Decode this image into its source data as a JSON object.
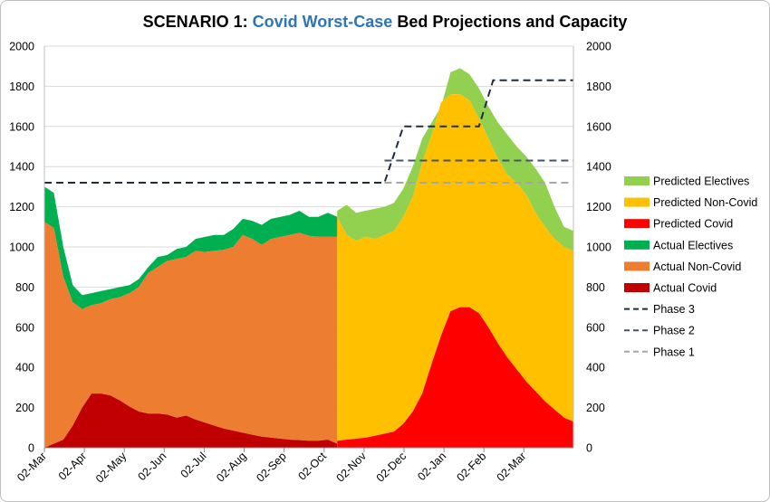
{
  "chart_data": {
    "type": "area",
    "title_prefix": "SCENARIO 1: ",
    "title_highlight": "Covid Worst-Case",
    "title_suffix": " Bed Projections and Capacity",
    "colors": {
      "title_highlight": "#2E75B6",
      "predicted_electives": "#92D050",
      "predicted_non_covid": "#FFC000",
      "predicted_covid": "#FF0000",
      "actual_electives": "#00B050",
      "actual_non_covid": "#ED7D31",
      "actual_covid": "#C00000",
      "phase3": "#1F2D3D",
      "phase2": "#44546A",
      "phase1": "#A6A6A6",
      "grid": "#D9D9D9"
    },
    "x_tick_labels": [
      "02-Mar",
      "02-Apr",
      "02-May",
      "02-Jun",
      "02-Jul",
      "02-Aug",
      "02-Sep",
      "02-Oct",
      "02-Nov",
      "02-Dec",
      "02-Jan",
      "02-Feb",
      "02-Mar"
    ],
    "x_range_weeks": [
      0,
      56
    ],
    "ylim": [
      0,
      2000
    ],
    "y_ticks": [
      0,
      200,
      400,
      600,
      800,
      1000,
      1200,
      1400,
      1600,
      1800,
      2000
    ],
    "grid": true,
    "legend_position": "right",
    "legend": [
      {
        "key": "predicted_electives",
        "label": "Predicted Electives",
        "style": "area"
      },
      {
        "key": "predicted_non_covid",
        "label": "Predicted Non-Covid",
        "style": "area"
      },
      {
        "key": "predicted_covid",
        "label": "Predicted Covid",
        "style": "area"
      },
      {
        "key": "actual_electives",
        "label": "Actual Electives",
        "style": "area"
      },
      {
        "key": "actual_non_covid",
        "label": "Actual Non-Covid",
        "style": "area"
      },
      {
        "key": "actual_covid",
        "label": "Actual Covid",
        "style": "area"
      },
      {
        "key": "phase3",
        "label": "Phase 3",
        "style": "dash"
      },
      {
        "key": "phase2",
        "label": "Phase 2",
        "style": "dash"
      },
      {
        "key": "phase1",
        "label": "Phase 1",
        "style": "dash"
      }
    ],
    "actual": {
      "week": [
        0,
        1,
        2,
        3,
        4,
        5,
        6,
        7,
        8,
        9,
        10,
        11,
        12,
        13,
        14,
        15,
        16,
        17,
        18,
        19,
        20,
        21,
        22,
        23,
        24,
        25,
        26,
        27,
        28,
        29,
        30,
        31
      ],
      "covid": [
        0,
        20,
        40,
        110,
        200,
        270,
        270,
        260,
        235,
        205,
        180,
        170,
        170,
        165,
        150,
        160,
        140,
        125,
        110,
        95,
        85,
        75,
        65,
        55,
        50,
        45,
        40,
        38,
        35,
        35,
        40,
        20
      ],
      "non_covid_top": [
        1125,
        1095,
        850,
        725,
        690,
        710,
        720,
        740,
        750,
        770,
        800,
        870,
        900,
        930,
        940,
        950,
        980,
        975,
        980,
        985,
        1000,
        1060,
        1040,
        1010,
        1040,
        1050,
        1060,
        1070,
        1055,
        1050,
        1050,
        1050
      ],
      "electives_top": [
        1300,
        1270,
        1000,
        810,
        760,
        770,
        780,
        790,
        800,
        810,
        840,
        900,
        950,
        960,
        990,
        1000,
        1040,
        1050,
        1060,
        1060,
        1090,
        1140,
        1130,
        1110,
        1140,
        1150,
        1160,
        1180,
        1150,
        1150,
        1170,
        1150
      ]
    },
    "predicted": {
      "week": [
        31,
        32,
        33,
        34,
        35,
        36,
        37,
        38,
        39,
        40,
        41,
        42,
        43,
        44,
        45,
        46,
        47,
        48,
        49,
        50,
        51,
        52,
        53,
        54,
        55,
        56
      ],
      "covid": [
        35,
        40,
        45,
        50,
        60,
        70,
        80,
        120,
        180,
        270,
        420,
        560,
        680,
        700,
        700,
        670,
        600,
        520,
        450,
        390,
        330,
        280,
        230,
        190,
        150,
        130
      ],
      "non_covid_top": [
        1150,
        1060,
        1030,
        1050,
        1040,
        1060,
        1080,
        1150,
        1250,
        1420,
        1560,
        1720,
        1760,
        1760,
        1730,
        1640,
        1540,
        1440,
        1360,
        1320,
        1260,
        1170,
        1100,
        1040,
        1000,
        980
      ],
      "electives_top": [
        1180,
        1210,
        1170,
        1180,
        1190,
        1200,
        1220,
        1290,
        1400,
        1540,
        1620,
        1700,
        1870,
        1890,
        1860,
        1790,
        1700,
        1620,
        1560,
        1500,
        1450,
        1390,
        1320,
        1200,
        1100,
        1080
      ]
    },
    "phases": {
      "phase3": [
        [
          0,
          1320
        ],
        [
          36,
          1320
        ],
        [
          38,
          1600
        ],
        [
          46,
          1600
        ],
        [
          47.5,
          1830
        ],
        [
          56,
          1830
        ]
      ],
      "phase2": [
        [
          36,
          1430
        ],
        [
          56,
          1430
        ]
      ],
      "phase1": [
        [
          36,
          1320
        ],
        [
          56,
          1320
        ]
      ]
    }
  }
}
